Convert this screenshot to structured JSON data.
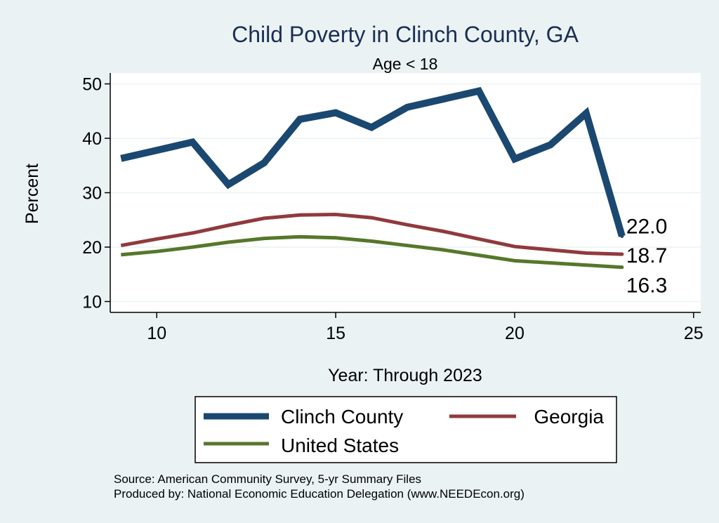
{
  "chart_data": {
    "type": "line",
    "title": "Child Poverty in Clinch County, GA",
    "subtitle": "Age < 18",
    "xlabel": "Year: Through 2023",
    "ylabel": "Percent",
    "xlim": [
      8.7,
      25.2
    ],
    "ylim": [
      8.0,
      52.0
    ],
    "xticks": [
      10,
      15,
      20,
      25
    ],
    "yticks": [
      10,
      20,
      30,
      40,
      50
    ],
    "grid": true,
    "legend_position": "bottom",
    "series": [
      {
        "name": "Clinch County",
        "color": "#1a4870",
        "x": [
          9,
          10,
          11,
          12,
          13,
          14,
          15,
          16,
          17,
          18,
          19,
          20,
          21,
          22,
          23
        ],
        "values": [
          36.3,
          37.8,
          39.3,
          31.5,
          35.5,
          43.5,
          44.7,
          42.0,
          45.7,
          47.2,
          48.7,
          36.2,
          38.8,
          44.6,
          22.0
        ],
        "end_label": "22.0"
      },
      {
        "name": "Georgia",
        "color": "#903a3e",
        "x": [
          9,
          10,
          11,
          12,
          13,
          14,
          15,
          16,
          17,
          18,
          19,
          20,
          21,
          22,
          23
        ],
        "values": [
          20.3,
          21.5,
          22.6,
          24.0,
          25.3,
          25.9,
          26.0,
          25.4,
          24.1,
          22.9,
          21.5,
          20.1,
          19.5,
          18.9,
          18.7
        ],
        "end_label": "18.7"
      },
      {
        "name": "United States",
        "color": "#56772b",
        "x": [
          9,
          10,
          11,
          12,
          13,
          14,
          15,
          16,
          17,
          18,
          19,
          20,
          21,
          22,
          23
        ],
        "values": [
          18.6,
          19.2,
          20.0,
          20.9,
          21.6,
          21.9,
          21.7,
          21.1,
          20.3,
          19.5,
          18.5,
          17.5,
          17.1,
          16.7,
          16.3
        ],
        "end_label": "16.3"
      }
    ],
    "source_lines": [
      "Source: American Community Survey, 5-yr Summary Files",
      "Produced by: National Economic Education Delegation (www.NEEDEcon.org)"
    ]
  }
}
